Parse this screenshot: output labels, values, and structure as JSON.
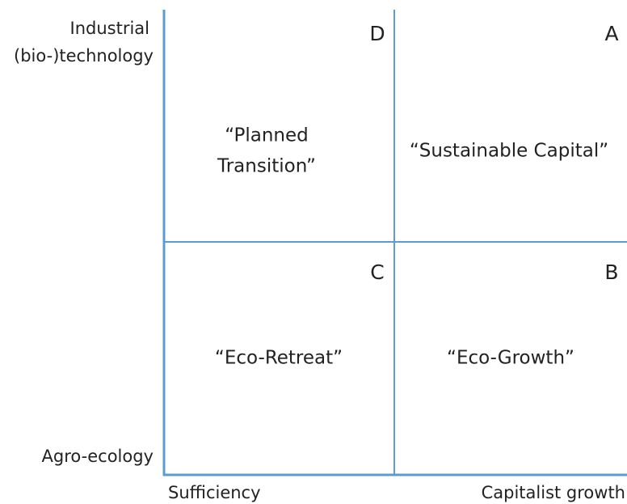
{
  "axes": {
    "y_top": [
      "Industrial",
      "(bio-)technology"
    ],
    "y_bottom": "Agro-ecology",
    "x_left": "Sufficiency",
    "x_right": "Capitalist growth"
  },
  "quadrants": [
    {
      "letter": "D",
      "lines": [
        "“Planned",
        "Transition”"
      ]
    },
    {
      "letter": "A",
      "lines": [
        "“Sustainable Capital”"
      ]
    },
    {
      "letter": "C",
      "lines": [
        "“Eco-Retreat”"
      ]
    },
    {
      "letter": "B",
      "lines": [
        "“Eco-Growth”"
      ]
    }
  ]
}
